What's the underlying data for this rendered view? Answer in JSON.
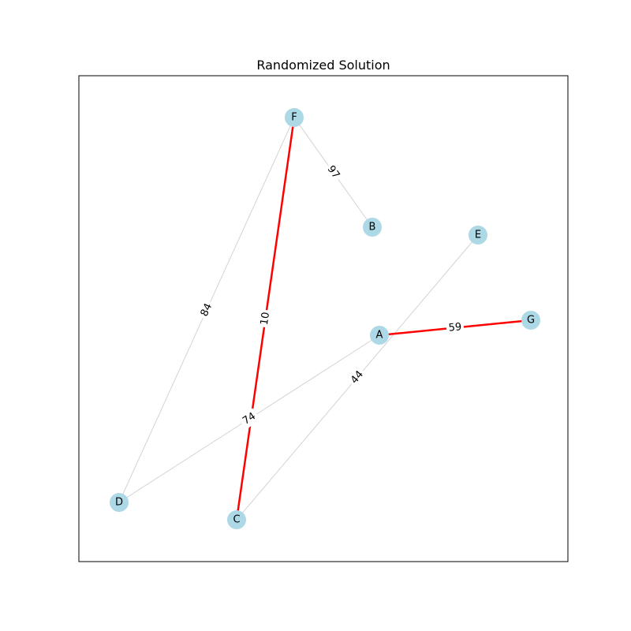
{
  "figure": {
    "title": "Randomized Solution"
  },
  "colors": {
    "node_fill": "#add8e6",
    "edge_default": "#d3d3d3",
    "edge_highlight": "#ff0000",
    "frame": "#000000"
  },
  "graph": {
    "nodes": [
      {
        "id": "A",
        "label": "A"
      },
      {
        "id": "B",
        "label": "B"
      },
      {
        "id": "C",
        "label": "C"
      },
      {
        "id": "D",
        "label": "D"
      },
      {
        "id": "E",
        "label": "E"
      },
      {
        "id": "F",
        "label": "F"
      },
      {
        "id": "G",
        "label": "G"
      }
    ],
    "edges": [
      {
        "id": "F-B",
        "source": "F",
        "target": "B",
        "weight": "97",
        "highlighted": false
      },
      {
        "id": "F-D",
        "source": "F",
        "target": "D",
        "weight": "84",
        "highlighted": false
      },
      {
        "id": "F-C",
        "source": "F",
        "target": "C",
        "weight": "10",
        "highlighted": true
      },
      {
        "id": "A-G",
        "source": "A",
        "target": "G",
        "weight": "59",
        "highlighted": true
      },
      {
        "id": "A-D",
        "source": "A",
        "target": "D",
        "weight": "74",
        "highlighted": false
      },
      {
        "id": "E-C",
        "source": "E",
        "target": "C",
        "weight": "44",
        "highlighted": false
      }
    ]
  }
}
